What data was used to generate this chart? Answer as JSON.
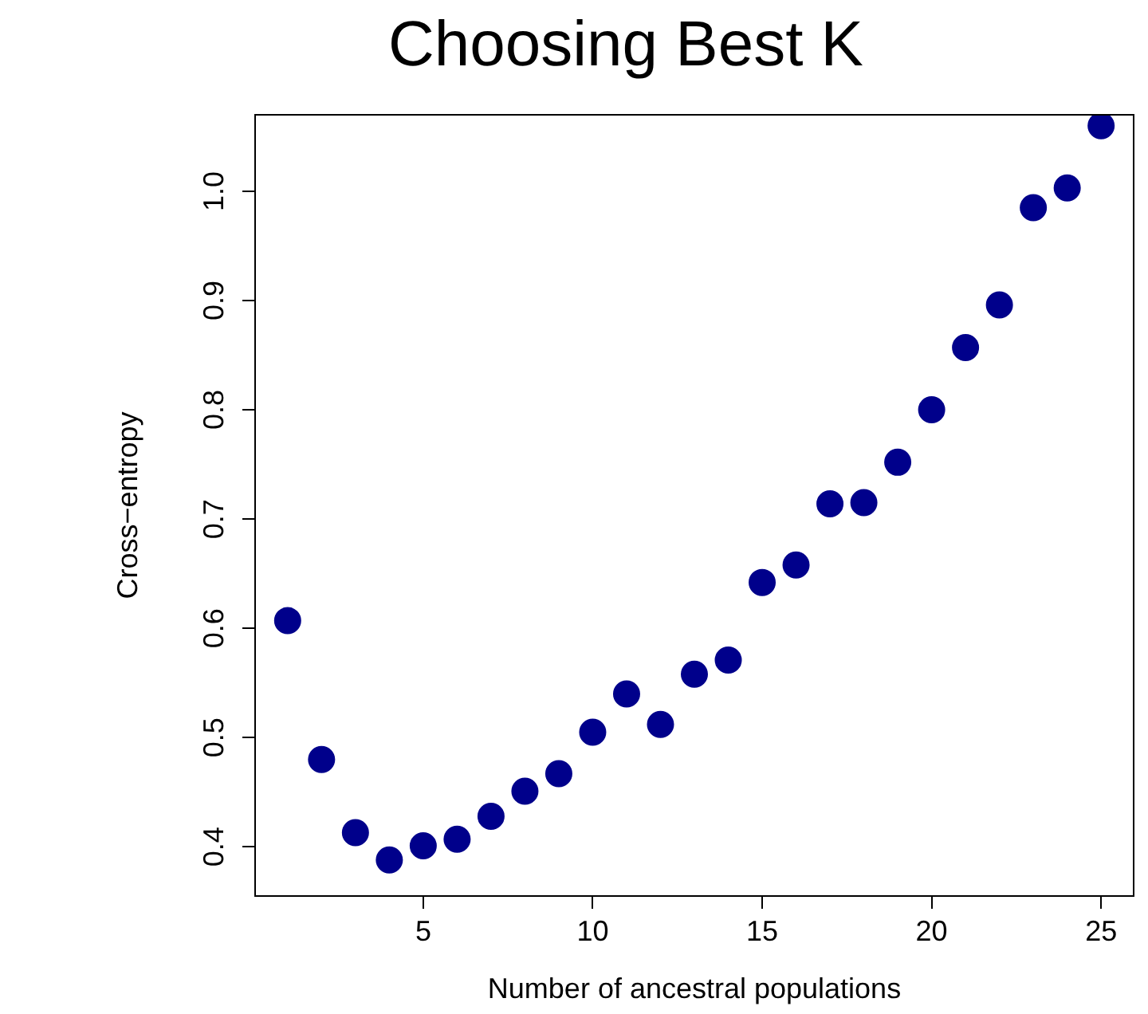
{
  "chart_data": {
    "type": "scatter",
    "title": "Choosing Best K",
    "xlabel": "Number of ancestral populations",
    "ylabel": "Cross−entropy",
    "x": [
      1,
      2,
      3,
      4,
      5,
      6,
      7,
      8,
      9,
      10,
      11,
      12,
      13,
      14,
      15,
      16,
      17,
      18,
      19,
      20,
      21,
      22,
      23,
      24,
      25
    ],
    "series": [
      {
        "color": "#00008b",
        "values": [
          0.607,
          0.48,
          0.413,
          0.388,
          0.401,
          0.407,
          0.428,
          0.451,
          0.467,
          0.505,
          0.54,
          0.512,
          0.558,
          0.571,
          0.642,
          0.658,
          0.714,
          0.715,
          0.752,
          0.8,
          0.857,
          0.896,
          0.985,
          1.003,
          1.06
        ]
      }
    ],
    "xlim": [
      0.04,
      25.96
    ],
    "xticks": [
      5,
      10,
      15,
      20,
      25
    ],
    "ylim": [
      0.355,
      1.07
    ],
    "yticks": [
      0.4,
      0.5,
      0.6,
      0.7,
      0.8,
      0.9,
      {
        "value": 1,
        "label": "1.0"
      }
    ],
    "marker": "circle",
    "grid": false,
    "legend": false
  }
}
